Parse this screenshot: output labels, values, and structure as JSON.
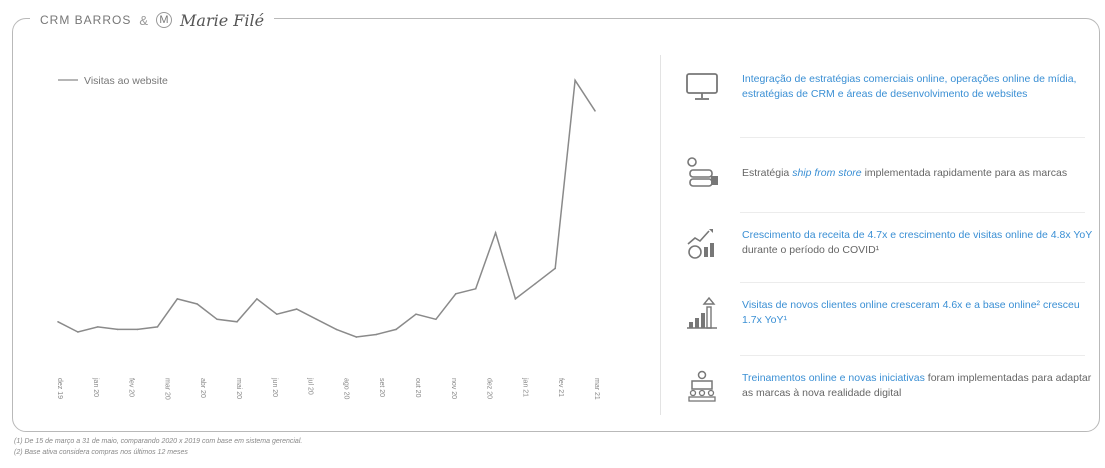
{
  "brand": {
    "crm": "CRM BARROS",
    "amp": "&",
    "partner_mark": "M",
    "partner": "Marie Filé"
  },
  "colors": {
    "accent_blue": "#3a8fd4",
    "line": "#8a8a8a",
    "text": "#666666"
  },
  "chart_data": {
    "type": "line",
    "series": [
      {
        "name": "Visitas ao website",
        "values": [
          17,
          13,
          15,
          14,
          14,
          15,
          26,
          24,
          18,
          17,
          26,
          20,
          22,
          18,
          14,
          11,
          12,
          14,
          20,
          18,
          28,
          30,
          52,
          26,
          32,
          38,
          112,
          100
        ]
      }
    ],
    "x_tick_labels": [
      "dez 19",
      "jan 20",
      "fev 20",
      "mar 20",
      "abr 20",
      "mai 20",
      "jun 20",
      "jul 20",
      "ago 20",
      "set 20",
      "out 20",
      "nov 20",
      "dez 20",
      "jan 21",
      "fev 21",
      "mar 21"
    ],
    "ylim": [
      0,
      120
    ],
    "grid": false,
    "legend": "top-left"
  },
  "items": [
    {
      "icon": "monitor-icon",
      "text": "Integração de estratégias comerciais online, operações online de mídia, estratégias de CRM e áreas de desenvolvimento de websites"
    },
    {
      "icon": "ship-from-store-icon",
      "prefix": "Estratégia ",
      "highlight": "ship from store",
      "suffix": " implementada rapidamente para as marcas"
    },
    {
      "icon": "revenue-growth-icon",
      "highlight": "Crescimento da receita de 4.7x e crescimento de visitas online de 4.8x YoY",
      "suffix": " durante o período do COVID¹"
    },
    {
      "icon": "growth-bars-icon",
      "text": "Visitas de novos clientes online cresceram 4.6x e a base online² cresceu 1.7x YoY¹"
    },
    {
      "icon": "training-icon",
      "highlight": "Treinamentos online e novas iniciativas",
      "suffix": " foram implementadas para adaptar as marcas à nova realidade digital"
    }
  ],
  "footnotes": [
    "(1) De 15 de março a 31 de maio, comparando 2020 x 2019 com base em sistema gerencial.",
    "(2) Base ativa considera compras nos últimos 12 meses"
  ]
}
